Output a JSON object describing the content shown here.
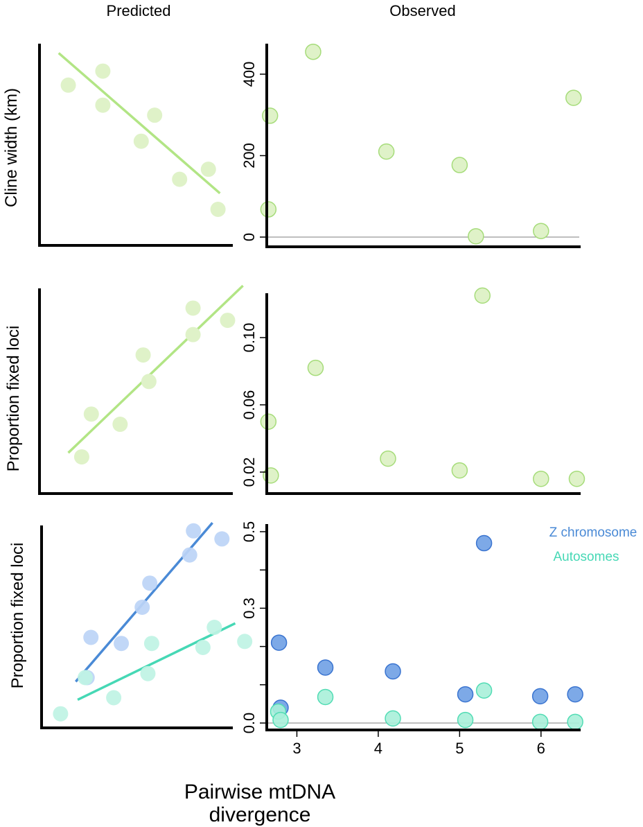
{
  "column_titles": {
    "predicted": "Predicted",
    "observed": "Observed"
  },
  "row_ylabels": [
    "Cline width (km)",
    "Proportion fixed loci",
    "Proportion fixed loci"
  ],
  "xlabel": {
    "line1": "Pairwise mtDNA",
    "line2": "divergence"
  },
  "legend": {
    "z_label": "Z chromosome",
    "auto_label": "Autosomes"
  },
  "colors": {
    "green_fill": "#dff2c8",
    "green_stroke": "#a6dc7a",
    "green_line": "#b2e585",
    "z_fill": "#6fa0e4",
    "z_stroke": "#3a74d0",
    "z_line": "#4a8ad6",
    "auto_fill": "#a8efd9",
    "auto_stroke": "#52dcb4",
    "auto_line": "#46d8b5",
    "z_light": "#bcd4f6",
    "auto_light": "#bff3e4",
    "zero_line": "#999999"
  },
  "chart_data": [
    {
      "type": "scatter",
      "panel": "predicted-cline-width",
      "x": [
        0.15,
        0.33,
        0.33,
        0.6,
        0.53,
        0.73,
        0.88,
        0.93
      ],
      "y": [
        0.8,
        0.87,
        0.7,
        0.65,
        0.52,
        0.33,
        0.38,
        0.18
      ],
      "fit_line": [
        [
          0.1,
          0.96
        ],
        [
          0.94,
          0.26
        ]
      ]
    },
    {
      "type": "scatter",
      "panel": "observed-cline-width",
      "ylim": [
        -25,
        470
      ],
      "yticks": [
        0,
        200,
        400
      ],
      "zero_line": true,
      "x": [
        2.65,
        2.67,
        3.2,
        4.1,
        5.0,
        5.2,
        6.0,
        6.4
      ],
      "y": [
        68,
        298,
        455,
        210,
        177,
        2,
        15,
        342
      ]
    },
    {
      "type": "scatter",
      "panel": "predicted-proportion-fixed",
      "x": [
        0.22,
        0.27,
        0.42,
        0.54,
        0.57,
        0.8,
        0.8,
        0.98
      ],
      "y": [
        0.18,
        0.39,
        0.34,
        0.68,
        0.55,
        0.91,
        0.78,
        0.85
      ],
      "fit_line": [
        [
          0.15,
          0.2
        ],
        [
          1.06,
          1.02
        ]
      ]
    },
    {
      "type": "scatter",
      "panel": "observed-proportion-fixed",
      "ylim": [
        0.008,
        0.125
      ],
      "yticks": [
        0.02,
        0.06,
        0.1
      ],
      "yticklabels": [
        "0.02",
        "0.06",
        "0.10"
      ],
      "x": [
        2.65,
        2.68,
        3.23,
        4.12,
        5.0,
        5.28,
        6.0,
        6.44
      ],
      "y": [
        0.05,
        0.018,
        0.082,
        0.028,
        0.021,
        0.125,
        0.016,
        0.016
      ]
    },
    {
      "type": "scatter",
      "panel": "predicted-proportion-fixed-by-chromosome",
      "series": [
        {
          "name": "Z chromosome",
          "x": [
            0.26,
            0.24,
            0.42,
            0.53,
            0.57,
            0.78,
            0.8,
            0.95
          ],
          "y": [
            0.45,
            0.25,
            0.42,
            0.6,
            0.72,
            0.86,
            0.98,
            0.94
          ],
          "fit_line": [
            [
              0.18,
              0.23
            ],
            [
              0.9,
              1.02
            ]
          ]
        },
        {
          "name": "Autosomes",
          "x": [
            0.1,
            0.23,
            0.38,
            0.56,
            0.58,
            0.85,
            0.91,
            1.07
          ],
          "y": [
            0.07,
            0.25,
            0.15,
            0.27,
            0.42,
            0.4,
            0.5,
            0.43
          ],
          "fit_line": [
            [
              0.19,
              0.14
            ],
            [
              1.02,
              0.52
            ]
          ]
        }
      ]
    },
    {
      "type": "scatter",
      "panel": "observed-proportion-fixed-by-chromosome",
      "xlim": [
        2.63,
        6.47
      ],
      "xticks": [
        3,
        4,
        5,
        6
      ],
      "xticklabels": [
        "3",
        "4",
        "5",
        "6"
      ],
      "ylim": [
        -0.01,
        0.5
      ],
      "yticks": [
        0.0,
        0.1,
        0.2,
        0.3,
        0.4,
        0.5
      ],
      "yticklabels": [
        "0.0",
        "",
        "",
        "0.3",
        "",
        "0.5"
      ],
      "zero_line": true,
      "legend_position": "top-right",
      "series": [
        {
          "name": "Z chromosome",
          "x": [
            2.78,
            2.8,
            3.35,
            4.18,
            5.07,
            5.3,
            5.99,
            6.42
          ],
          "y": [
            0.21,
            0.04,
            0.145,
            0.135,
            0.075,
            0.47,
            0.07,
            0.075
          ]
        },
        {
          "name": "Autosomes",
          "x": [
            2.77,
            2.8,
            3.35,
            4.18,
            5.07,
            5.3,
            5.99,
            6.42
          ],
          "y": [
            0.03,
            0.008,
            0.068,
            0.012,
            0.008,
            0.085,
            0.003,
            0.003
          ]
        }
      ]
    }
  ]
}
